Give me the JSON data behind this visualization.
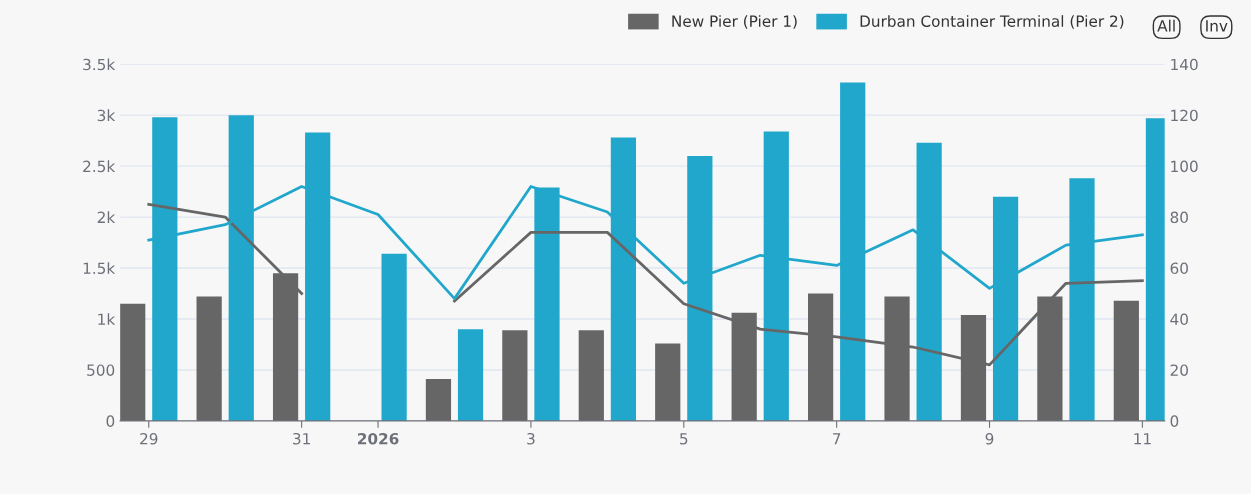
{
  "chart_data": {
    "type": "bar",
    "x": [
      "2025-12-29",
      "2025-12-30",
      "2025-12-31",
      "2026-01-01",
      "2026-01-02",
      "2026-01-03",
      "2026-01-04",
      "2026-01-05",
      "2026-01-06",
      "2026-01-07",
      "2026-01-08",
      "2026-01-09",
      "2026-01-10",
      "2026-01-11"
    ],
    "series": [
      {
        "name": "New Pier (Pier 1)",
        "color": "#666666",
        "values": [
          1150,
          1220,
          1450,
          null,
          410,
          890,
          890,
          760,
          1060,
          1250,
          1220,
          1040,
          1220,
          1180
        ]
      },
      {
        "name": "Durban Container Terminal (Pier 2)",
        "color": "#21a7cb",
        "values": [
          2980,
          3000,
          2830,
          1640,
          900,
          2290,
          2780,
          2600,
          2840,
          3320,
          2730,
          2200,
          2380,
          2970
        ]
      },
      {
        "type": "line",
        "axis": "y2",
        "color": "#666666",
        "values": [
          85,
          80,
          50,
          null,
          47,
          74,
          74,
          46,
          36,
          33,
          29,
          22,
          54,
          55
        ]
      },
      {
        "type": "line",
        "axis": "y2",
        "color": "#21a7cb",
        "values": [
          71,
          77,
          92,
          81,
          48,
          92,
          82,
          54,
          65,
          61,
          75,
          52,
          69,
          73
        ]
      }
    ],
    "xlim": [
      "2025-12-28T15:00",
      "2026-01-11T07:00"
    ],
    "xticks": [
      {
        "value": "2025-12-29",
        "label": "29"
      },
      {
        "value": "2025-12-31",
        "label": "31"
      },
      {
        "value": "2026-01-01",
        "label": "2026"
      },
      {
        "value": "2026-01-03",
        "label": "3"
      },
      {
        "value": "2026-01-05",
        "label": "5"
      },
      {
        "value": "2026-01-07",
        "label": "7"
      },
      {
        "value": "2026-01-09",
        "label": "9"
      },
      {
        "value": "2026-01-11",
        "label": "11"
      }
    ],
    "ylim": [
      0,
      3500
    ],
    "yticks": [
      0,
      500,
      {
        "value": 1000,
        "label": "1k"
      },
      {
        "value": 1500,
        "label": "1.5k"
      },
      {
        "value": 2000,
        "label": "2k"
      },
      {
        "value": 2500,
        "label": "2.5k"
      },
      {
        "value": 3000,
        "label": "3k"
      },
      {
        "value": 3500,
        "label": "3.5k"
      }
    ],
    "y2lim": [
      0,
      140
    ],
    "y2ticks": [
      0,
      20,
      40,
      60,
      80,
      100,
      120,
      140
    ],
    "grid": "y",
    "legend": "top right",
    "marker": "none",
    "line_style": "solid",
    "annotations": [
      "All",
      "Inv"
    ]
  }
}
